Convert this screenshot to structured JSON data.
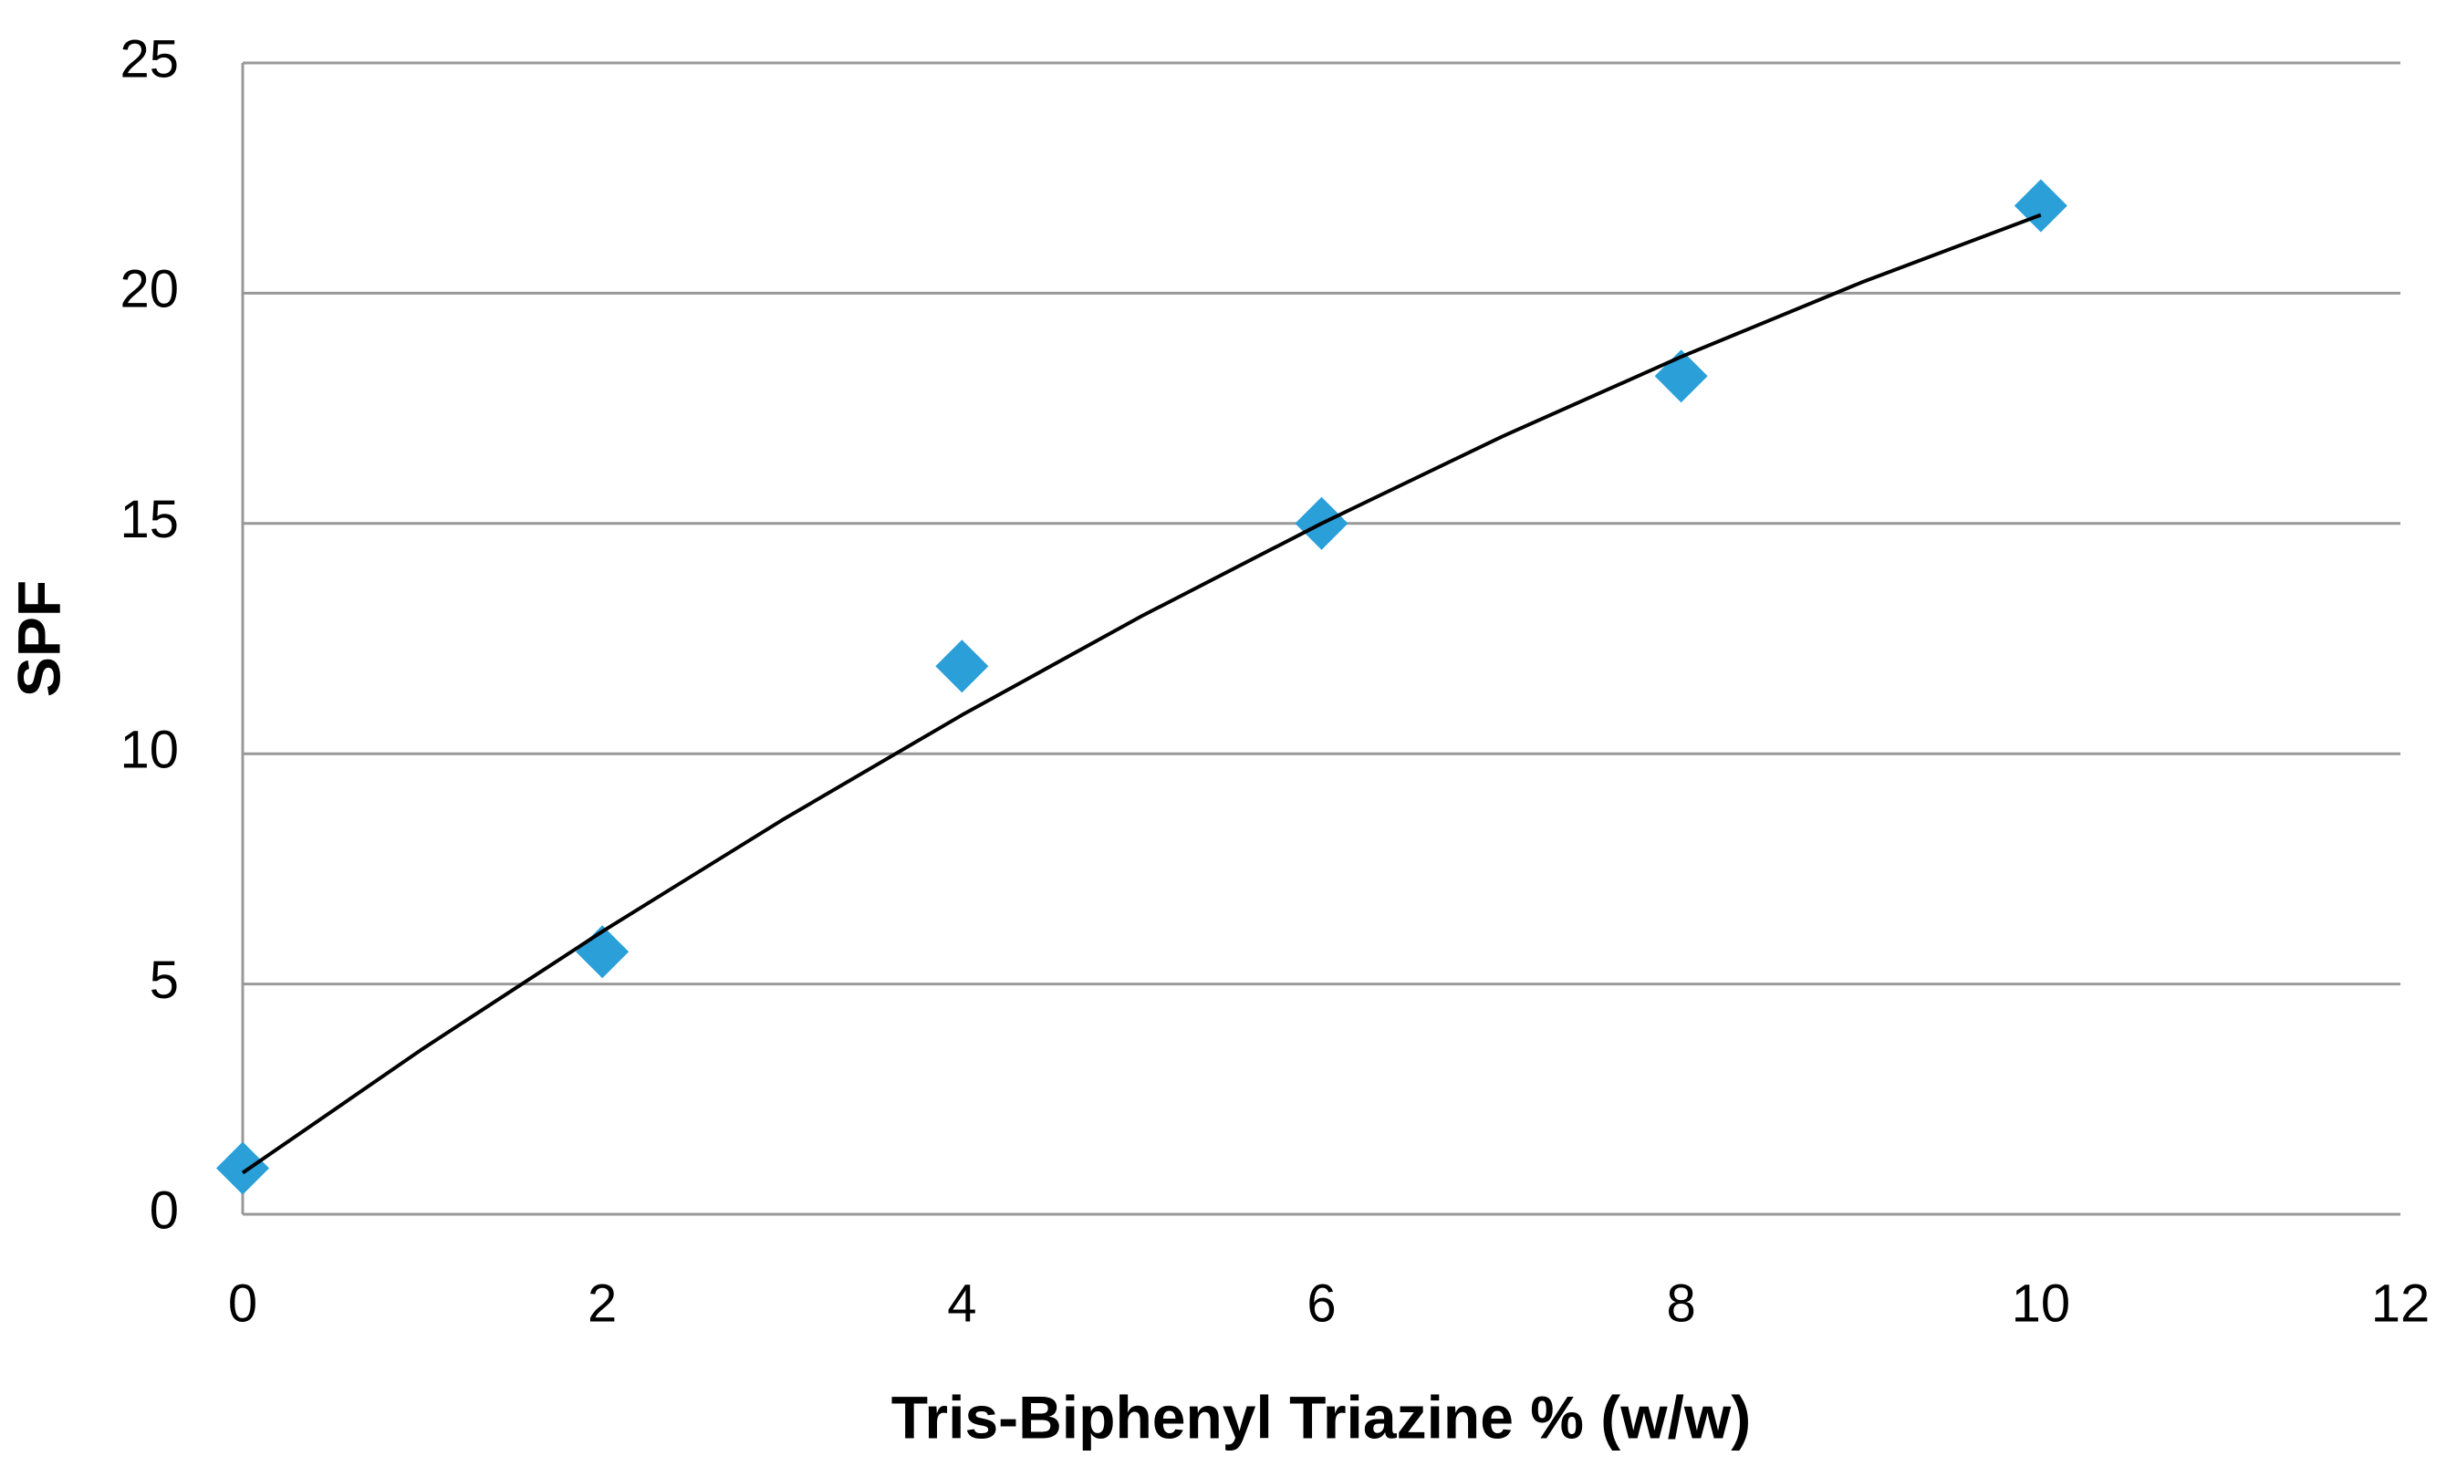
{
  "chart_data": {
    "type": "scatter",
    "x_label": "Tris-Biphenyl Triazine % (w/w)",
    "y_label": "SPF",
    "series": [
      {
        "x": [
          0,
          2,
          4,
          6,
          8,
          10
        ],
        "values": [
          1,
          5.7,
          11.9,
          15,
          18.2,
          21.9
        ],
        "color": "#2a9fd8"
      }
    ],
    "trendline": {
      "x": [
        0,
        1,
        2,
        3,
        4,
        5,
        6,
        7,
        8,
        9,
        10
      ],
      "values": [
        0.9,
        3.59,
        6.14,
        8.56,
        10.84,
        12.99,
        15.0,
        16.88,
        18.62,
        20.23,
        21.7
      ],
      "color": "#000000"
    },
    "xlim": [
      0,
      12
    ],
    "xticks": [
      0,
      2,
      4,
      6,
      8,
      10,
      12
    ],
    "ylim": [
      0,
      25
    ],
    "yticks": [
      0,
      5,
      10,
      15,
      20,
      25
    ],
    "grid": true
  }
}
